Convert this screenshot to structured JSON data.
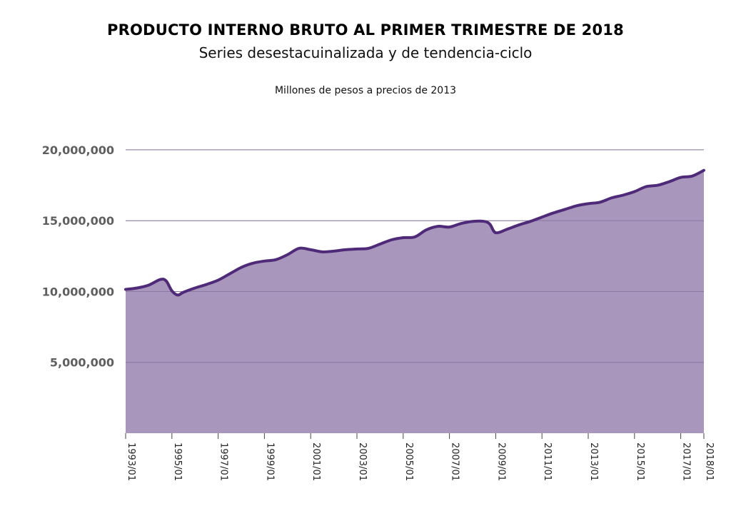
{
  "chart_data": {
    "type": "area",
    "title": "PRODUCTO INTERNO BRUTO AL PRIMER TRIMESTRE DE 2018",
    "subtitle": "Series desestacuinalizada y de tendencia-ciclo",
    "units": "Millones de pesos a precios de 2013",
    "ylim": [
      0,
      20500000
    ],
    "y_ticks": [
      {
        "value": 5000000,
        "label": "5,000,000"
      },
      {
        "value": 10000000,
        "label": "10,000,000"
      },
      {
        "value": 15000000,
        "label": "15,000,000"
      },
      {
        "value": 20000000,
        "label": "20,000,000"
      }
    ],
    "x_ticks": [
      "1993/01",
      "1995/01",
      "1997/01",
      "1999/01",
      "2001/01",
      "2003/01",
      "2005/01",
      "2007/01",
      "2009/01",
      "2011/01",
      "2013/01",
      "2015/01",
      "2017/01",
      "2018/01"
    ],
    "grid": "horizontal",
    "colors": {
      "line": "#4e2a78",
      "fill": "#a896bd",
      "grid": "#cccccc"
    },
    "series": [
      {
        "name": "",
        "points": [
          [
            "1993/01",
            10150000
          ],
          [
            "1993/07",
            10250000
          ],
          [
            "1994/01",
            10450000
          ],
          [
            "1994/07",
            10850000
          ],
          [
            "1994/10",
            10750000
          ],
          [
            "1995/01",
            10050000
          ],
          [
            "1995/04",
            9750000
          ],
          [
            "1995/07",
            9950000
          ],
          [
            "1996/01",
            10250000
          ],
          [
            "1996/07",
            10500000
          ],
          [
            "1997/01",
            10800000
          ],
          [
            "1997/07",
            11250000
          ],
          [
            "1998/01",
            11700000
          ],
          [
            "1998/07",
            12000000
          ],
          [
            "1999/01",
            12150000
          ],
          [
            "1999/07",
            12250000
          ],
          [
            "2000/01",
            12600000
          ],
          [
            "2000/07",
            13050000
          ],
          [
            "2001/01",
            12950000
          ],
          [
            "2001/07",
            12800000
          ],
          [
            "2002/01",
            12850000
          ],
          [
            "2002/07",
            12950000
          ],
          [
            "2003/01",
            13000000
          ],
          [
            "2003/07",
            13050000
          ],
          [
            "2004/01",
            13350000
          ],
          [
            "2004/07",
            13650000
          ],
          [
            "2005/01",
            13800000
          ],
          [
            "2005/07",
            13850000
          ],
          [
            "2006/01",
            14350000
          ],
          [
            "2006/07",
            14600000
          ],
          [
            "2007/01",
            14550000
          ],
          [
            "2007/07",
            14800000
          ],
          [
            "2008/01",
            14950000
          ],
          [
            "2008/07",
            14950000
          ],
          [
            "2008/10",
            14750000
          ],
          [
            "2009/01",
            14150000
          ],
          [
            "2009/07",
            14400000
          ],
          [
            "2010/01",
            14700000
          ],
          [
            "2010/07",
            14950000
          ],
          [
            "2011/01",
            15250000
          ],
          [
            "2011/07",
            15550000
          ],
          [
            "2012/01",
            15800000
          ],
          [
            "2012/07",
            16050000
          ],
          [
            "2013/01",
            16200000
          ],
          [
            "2013/07",
            16300000
          ],
          [
            "2014/01",
            16600000
          ],
          [
            "2014/07",
            16800000
          ],
          [
            "2015/01",
            17050000
          ],
          [
            "2015/07",
            17400000
          ],
          [
            "2016/01",
            17500000
          ],
          [
            "2016/07",
            17750000
          ],
          [
            "2017/01",
            18050000
          ],
          [
            "2017/07",
            18150000
          ],
          [
            "2018/01",
            18550000
          ]
        ]
      }
    ]
  }
}
